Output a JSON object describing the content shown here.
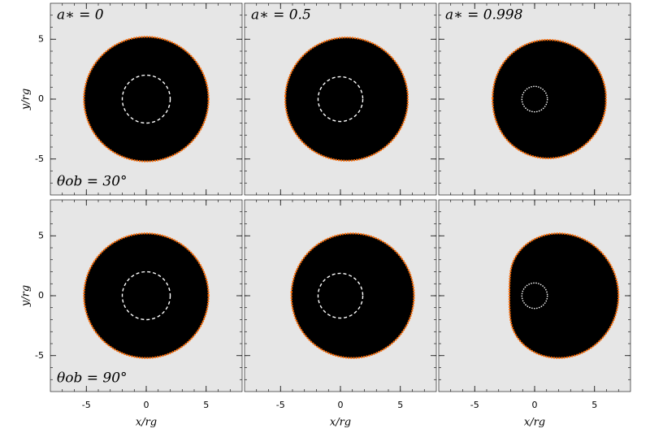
{
  "chart_data": {
    "type": "shadow",
    "xlabel": "x/rg",
    "ylabel": "y/rg",
    "xlim": [
      -8,
      8
    ],
    "ylim": [
      -8,
      8
    ],
    "xticks": [
      -5,
      0,
      5
    ],
    "yticks": [
      -5,
      0,
      5
    ],
    "minor_ticks": [
      -7,
      -6,
      -5,
      -4,
      -3,
      -2,
      -1,
      0,
      1,
      2,
      3,
      4,
      5,
      6,
      7
    ],
    "columns": [
      {
        "label": "a∗ = 0",
        "spin": 0
      },
      {
        "label": "a∗ = 0.5",
        "spin": 0.5
      },
      {
        "label": "a∗ = 0.998",
        "spin": 0.998
      }
    ],
    "rows": [
      {
        "label": "θob = 30°",
        "inclination": 30
      },
      {
        "label": "θob = 90°",
        "inclination": 90
      }
    ],
    "background_color": "#e6e6e6",
    "shadow_color": "#000000",
    "edge_color": "#ff6a00",
    "horizon_color": "#ffffff"
  }
}
